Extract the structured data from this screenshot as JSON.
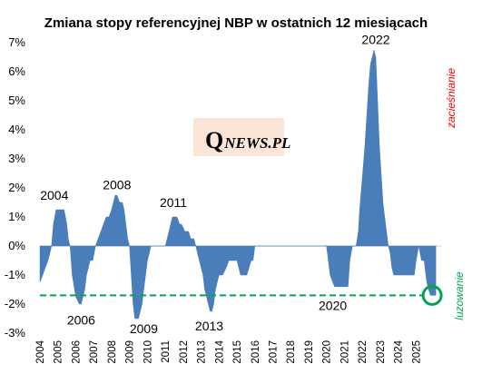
{
  "colors": {
    "area": "#4a7ebb",
    "tightening": "#ff0000",
    "easing": "#00a651",
    "dashed_line": "#00a651",
    "marker": "#00a651",
    "logo_bg": "#fbe5d6",
    "axis": "#d9d9d9"
  },
  "logo": {
    "q": "Q",
    "rest": "NEWS.PL"
  },
  "chart_data": {
    "type": "area",
    "title": "Zmiana stopy referencyjnej NBP w ostatnich 12 miesiącach",
    "xlabel": "",
    "ylabel": "",
    "ylim": [
      -3,
      7
    ],
    "xlim": [
      2004.0,
      2026.4
    ],
    "y_ticks": [
      {
        "value": 7,
        "label": "7%"
      },
      {
        "value": 6,
        "label": "6%"
      },
      {
        "value": 5,
        "label": "5%"
      },
      {
        "value": 4,
        "label": "4%"
      },
      {
        "value": 3,
        "label": "3%"
      },
      {
        "value": 2,
        "label": "2%"
      },
      {
        "value": 1,
        "label": "1%"
      },
      {
        "value": 0,
        "label": "0%"
      },
      {
        "value": -1,
        "label": "-1%"
      },
      {
        "value": -2,
        "label": "-2%"
      },
      {
        "value": -3,
        "label": "-3%"
      }
    ],
    "x_ticks": [
      "2004",
      "2005",
      "2006",
      "2007",
      "2008",
      "2009",
      "2010",
      "2011",
      "2012",
      "2013",
      "2014",
      "2015",
      "2016",
      "2017",
      "2018",
      "2019",
      "2020",
      "2021",
      "2022",
      "2023",
      "2024",
      "2025"
    ],
    "series": [
      {
        "x": [
          2004.0,
          2004.15,
          2004.3,
          2004.45,
          2004.55,
          2004.65,
          2004.75,
          2004.9,
          2005.1,
          2005.35,
          2005.5,
          2005.58,
          2005.68,
          2005.8,
          2006.0,
          2006.2,
          2006.3,
          2006.4,
          2006.5,
          2006.6,
          2006.7,
          2006.8,
          2006.95,
          2007.1,
          2007.25,
          2007.4,
          2007.55,
          2007.7,
          2007.85,
          2008.0,
          2008.1,
          2008.2,
          2008.3,
          2008.45,
          2008.6,
          2008.7,
          2008.8,
          2008.9,
          2009.0,
          2009.05,
          2009.1,
          2009.15,
          2009.2,
          2009.3,
          2009.4,
          2009.5,
          2009.6,
          2009.7,
          2009.8,
          2009.9,
          2010.0,
          2010.1,
          2010.2,
          2010.3,
          2010.4,
          2010.55,
          2010.8,
          2011.0,
          2011.1,
          2011.2,
          2011.3,
          2011.4,
          2011.5,
          2011.65,
          2011.8,
          2011.9,
          2012.1,
          2012.3,
          2012.42,
          2012.5,
          2012.6,
          2012.7,
          2012.8,
          2012.9,
          2013.0,
          2013.1,
          2013.2,
          2013.3,
          2013.4,
          2013.5,
          2013.6,
          2013.7,
          2013.8,
          2013.9,
          2014.0,
          2014.2,
          2014.4,
          2014.55,
          2014.65,
          2014.8,
          2014.95,
          2015.0,
          2015.1,
          2015.2,
          2015.3,
          2015.55,
          2015.8,
          2015.9,
          2016.0,
          2016.5,
          2017.0,
          2017.5,
          2018.0,
          2018.5,
          2019.0,
          2019.5,
          2019.9,
          2020.0,
          2020.1,
          2020.2,
          2020.35,
          2020.45,
          2020.6,
          2021.0,
          2021.2,
          2021.3,
          2021.45,
          2021.65,
          2021.78,
          2021.85,
          2021.95,
          2022.05,
          2022.15,
          2022.25,
          2022.35,
          2022.45,
          2022.55,
          2022.65,
          2022.75,
          2022.85,
          2022.95,
          2023.05,
          2023.15,
          2023.25,
          2023.35,
          2023.45,
          2023.55,
          2023.65,
          2023.75,
          2023.85,
          2023.95,
          2024.5,
          2024.9,
          2025.0,
          2025.15,
          2025.3,
          2025.35,
          2025.45,
          2025.5,
          2025.55,
          2025.6,
          2025.7,
          2025.8,
          2025.9,
          2026.0,
          2026.1
        ],
        "y": [
          -1.25,
          -1.0,
          -0.75,
          -0.5,
          -0.25,
          0,
          0.75,
          1.25,
          1.25,
          1.25,
          0.75,
          0.25,
          0,
          -1.0,
          -1.75,
          -2.0,
          -2.0,
          -1.75,
          -1.5,
          -1.0,
          -0.75,
          -0.5,
          -0.5,
          0,
          0.25,
          0.5,
          0.75,
          1.0,
          1.0,
          1.25,
          1.5,
          1.75,
          1.75,
          1.5,
          1.5,
          1.25,
          0.75,
          0.25,
          0,
          -0.5,
          -1.0,
          -1.5,
          -2.0,
          -2.5,
          -2.5,
          -2.5,
          -2.25,
          -2.0,
          -1.5,
          -1.0,
          -0.5,
          -0.25,
          0,
          0,
          0,
          0,
          0,
          0,
          0.25,
          0.5,
          0.75,
          1.0,
          1.0,
          1.0,
          0.75,
          0.75,
          0.5,
          0.5,
          0.25,
          0.25,
          0.25,
          0,
          -0.25,
          -0.5,
          -0.75,
          -1.0,
          -1.5,
          -1.75,
          -2.0,
          -2.25,
          -2.25,
          -2.0,
          -1.5,
          -1.25,
          -1.0,
          -1.0,
          -0.75,
          -0.5,
          -0.5,
          -0.5,
          -0.5,
          -0.5,
          -0.75,
          -1.0,
          -1.0,
          -1.0,
          -0.5,
          -0.5,
          0,
          0,
          0,
          0,
          0,
          0,
          0,
          0,
          0,
          0,
          -0.5,
          -1.0,
          -1.25,
          -1.4,
          -1.4,
          -1.4,
          -1.4,
          -0.5,
          0,
          0,
          0.5,
          1.25,
          2.0,
          2.75,
          3.5,
          4.5,
          5.5,
          6.25,
          6.5,
          6.75,
          6.5,
          5.0,
          3.5,
          2.5,
          1.5,
          1.0,
          0.5,
          0,
          -0.25,
          -0.75,
          -1.0,
          -1.0,
          -1.0,
          -1.0,
          -1.0,
          -0.5,
          0,
          -0.5,
          -0.5,
          -0.5,
          -0.75,
          -1.0,
          -1.25,
          -1.5,
          -1.7,
          -1.7,
          -1.7,
          -1.7
        ]
      }
    ],
    "annotations": [
      {
        "x": 2004.8,
        "y": 1.6,
        "text": "2004"
      },
      {
        "x": 2006.3,
        "y": -2.7,
        "text": "2006"
      },
      {
        "x": 2008.3,
        "y": 1.95,
        "text": "2008"
      },
      {
        "x": 2009.8,
        "y": -3.0,
        "text": "2009"
      },
      {
        "x": 2011.45,
        "y": 1.35,
        "text": "2011"
      },
      {
        "x": 2013.45,
        "y": -2.9,
        "text": "2013"
      },
      {
        "x": 2020.35,
        "y": -2.2,
        "text": "2020"
      },
      {
        "x": 2022.75,
        "y": 6.95,
        "text": "2022"
      }
    ],
    "reference_line": {
      "y": -1.7,
      "style": "dashed"
    },
    "marker": {
      "x": 2025.9,
      "y": -1.7
    },
    "side_labels": {
      "top": "zacieśnianie",
      "bottom": "luzowanie"
    }
  }
}
